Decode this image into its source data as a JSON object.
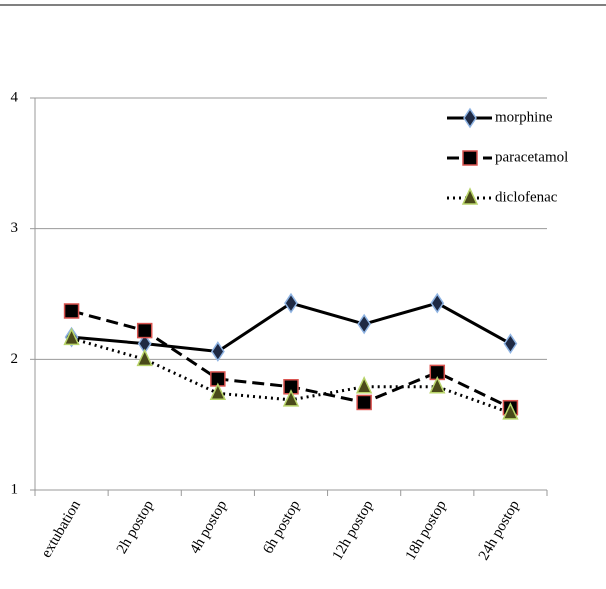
{
  "chart_data": {
    "type": "line",
    "categories": [
      "extubation",
      "2h postop",
      "4h postop",
      "6h postop",
      "12h postop",
      "18h postop",
      "24h postop"
    ],
    "series": [
      {
        "name": "morphine",
        "color": "#000000",
        "line_style": "solid",
        "marker": "diamond",
        "marker_fill": "#1f2a44",
        "marker_edge": "#8fb4e3",
        "values": [
          2.17,
          2.12,
          2.06,
          2.43,
          2.27,
          2.43,
          2.12
        ]
      },
      {
        "name": "paracetamol",
        "color": "#000000",
        "line_style": "dashed",
        "marker": "square",
        "marker_fill": "#000000",
        "marker_edge": "#d9534f",
        "values": [
          2.37,
          2.22,
          1.85,
          1.79,
          1.67,
          1.9,
          1.63
        ]
      },
      {
        "name": "diclofenac",
        "color": "#000000",
        "line_style": "dotted",
        "marker": "triangle",
        "marker_fill": "#4a4a1a",
        "marker_edge": "#b8d46a",
        "values": [
          2.16,
          2.0,
          1.74,
          1.69,
          1.79,
          1.79,
          1.59
        ]
      }
    ],
    "ylim": [
      1,
      4
    ],
    "yticks": [
      1,
      2,
      3,
      4
    ],
    "grid": true,
    "legend": "top-right"
  }
}
